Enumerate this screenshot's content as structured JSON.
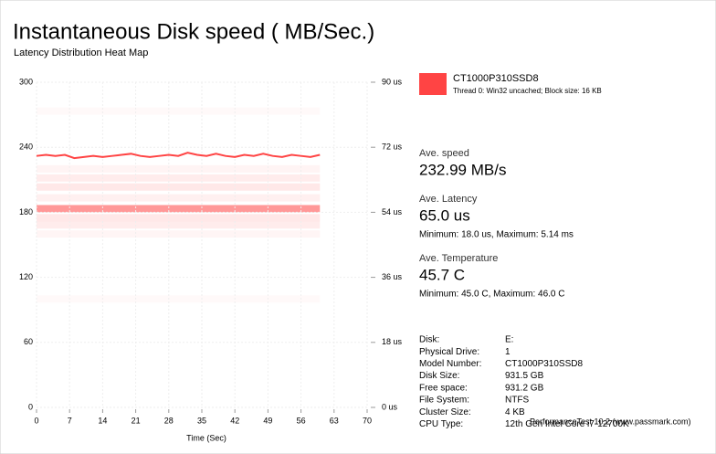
{
  "chart_data": {
    "type": "line",
    "title": "Instantaneous Disk speed ( MB/Sec.)",
    "subtitle": "Latency Distribution Heat Map",
    "x_label": "Time (Sec)",
    "xlim": [
      0,
      70
    ],
    "xticks": [
      0,
      7,
      14,
      21,
      28,
      35,
      42,
      49,
      56,
      63,
      70
    ],
    "ylim": [
      0,
      300
    ],
    "yticks": [
      0,
      60,
      120,
      180,
      240,
      300
    ],
    "y2lim": [
      0,
      90
    ],
    "y2ticks": [
      {
        "value": 0,
        "label": "0 us"
      },
      {
        "value": 18,
        "label": "18 us"
      },
      {
        "value": 36,
        "label": "36 us"
      },
      {
        "value": 54,
        "label": "54 us"
      },
      {
        "value": 72,
        "label": "72 us"
      },
      {
        "value": 90,
        "label": "90 us"
      }
    ],
    "grid": true,
    "series": [
      {
        "name": "CT1000P310SSD8",
        "color": "#ff4444",
        "x": [
          0,
          2,
          4,
          6,
          8,
          10,
          12,
          14,
          16,
          18,
          20,
          22,
          24,
          26,
          28,
          30,
          32,
          34,
          36,
          38,
          40,
          42,
          44,
          46,
          48,
          50,
          52,
          54,
          56,
          58,
          60
        ],
        "values": [
          232,
          233,
          232,
          233,
          230,
          231,
          232,
          231,
          232,
          233,
          234,
          232,
          231,
          232,
          233,
          232,
          235,
          233,
          232,
          234,
          232,
          231,
          233,
          232,
          234,
          232,
          231,
          233,
          232,
          231,
          233
        ]
      }
    ],
    "legend_detail": "Thread 0: Win32 uncached; Block size: 16 KB",
    "heatmap": {
      "axis": "y2",
      "x_range": [
        0,
        60
      ],
      "rows": [
        {
          "latency": 66,
          "intensity": 0.06
        },
        {
          "latency": 63.5,
          "intensity": 0.1
        },
        {
          "latency": 61,
          "intensity": 0.12
        },
        {
          "latency": 58,
          "intensity": 0.08
        },
        {
          "latency": 55,
          "intensity": 0.55
        },
        {
          "latency": 52.5,
          "intensity": 0.12
        },
        {
          "latency": 50.5,
          "intensity": 0.1
        },
        {
          "latency": 48,
          "intensity": 0.05
        },
        {
          "latency": 30,
          "intensity": 0.03
        },
        {
          "latency": 82,
          "intensity": 0.03
        }
      ]
    }
  },
  "stats": [
    {
      "label": "Ave. speed",
      "value": "232.99 MB/s"
    },
    {
      "label": "Ave. Latency",
      "value": "65.0 us",
      "detail": "Minimum: 18.0 us, Maximum: 5.14 ms"
    },
    {
      "label": "Ave. Temperature",
      "value": "45.7 C",
      "detail": "Minimum: 45.0 C, Maximum: 46.0 C"
    }
  ],
  "disk_info": [
    [
      "Disk:",
      "E:"
    ],
    [
      "Physical Drive:",
      "1"
    ],
    [
      "Model Number:",
      "CT1000P310SSD8"
    ],
    [
      "Disk Size:",
      "931.5 GB"
    ],
    [
      "Free space:",
      "931.2 GB"
    ],
    [
      "File System:",
      "NTFS"
    ],
    [
      "Cluster Size:",
      "4 KB"
    ],
    [
      "CPU Type:",
      "12th Gen Intel Core i7-12700K"
    ]
  ],
  "footer": "PerformanceTest 10.2 (www.passmark.com)"
}
